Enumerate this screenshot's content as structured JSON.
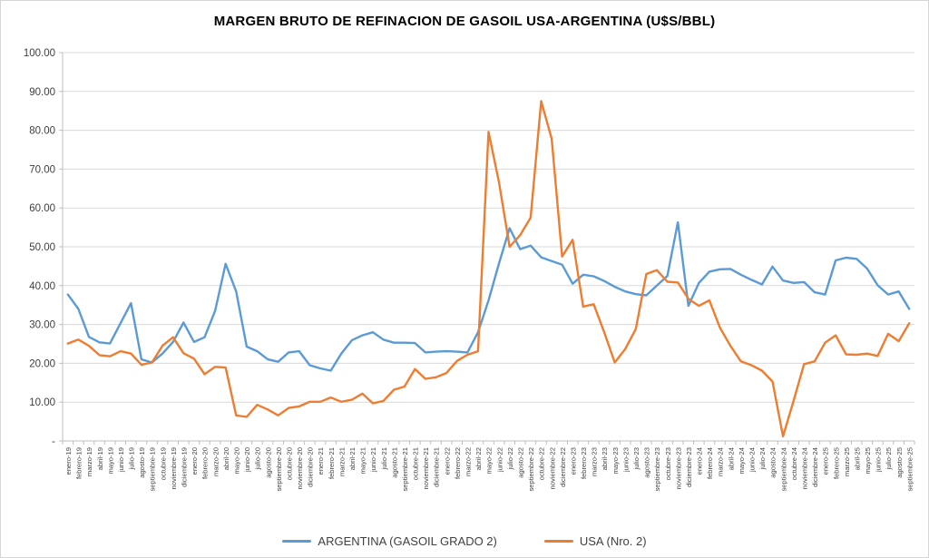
{
  "title": "MARGEN BRUTO DE REFINACION DE GASOIL USA-ARGENTINA (U$S/BBL)",
  "colors": {
    "argentina": "#5B9BD5",
    "usa": "#ED7D31",
    "grid": "#D9D9D9",
    "axis": "#BFBFBF",
    "tick_text": "#404040",
    "title_text": "#000000"
  },
  "y_axis": {
    "tick_labels": [
      "100.00",
      "90.00",
      "80.00",
      "70.00",
      "60.00",
      "50.00",
      "40.00",
      "30.00",
      "20.00",
      "10.00",
      "-"
    ],
    "tick_values": [
      100,
      90,
      80,
      70,
      60,
      50,
      40,
      30,
      20,
      10,
      0
    ]
  },
  "chart_data": {
    "type": "line",
    "title": "MARGEN BRUTO DE REFINACION DE GASOIL USA-ARGENTINA (U$S/BBL)",
    "xlabel": "",
    "ylabel": "",
    "ylim": [
      0,
      100
    ],
    "grid": "horizontal",
    "legend_position": "bottom",
    "categories": [
      "enero-19",
      "febrero-19",
      "marzo-19",
      "abril-19",
      "mayo-19",
      "junio-19",
      "julio-19",
      "agosto-19",
      "septiembre-19",
      "octubre-19",
      "noviembre-19",
      "diciembre-19",
      "enero-20",
      "febrero-20",
      "marzo-20",
      "abril-20",
      "mayo-20",
      "junio-20",
      "julio-20",
      "agosto-20",
      "septiembre-20",
      "octubre-20",
      "noviembre-20",
      "diciembre-20",
      "enero-21",
      "febrero-21",
      "marzo-21",
      "abril-21",
      "mayo-21",
      "junio-21",
      "julio-21",
      "agosto-21",
      "septiembre-21",
      "octubre-21",
      "noviembre-21",
      "diciembre-21",
      "enero-22",
      "febrero-22",
      "marzo-22",
      "abril-22",
      "mayo-22",
      "junio-22",
      "julio-22",
      "agosto-22",
      "septiembre-22",
      "octubre-22",
      "noviembre-22",
      "diciembre-22",
      "enero-23",
      "febrero-23",
      "marzo-23",
      "abril-23",
      "mayo-23",
      "junio-23",
      "julio-23",
      "agosto-23",
      "septiembre-23",
      "octubre-23",
      "noviembre-23",
      "diciembre-23",
      "enero-24",
      "febrero-24",
      "marzo-24",
      "abril-24",
      "mayo-24",
      "junio-24",
      "julio-24",
      "agosto-24",
      "septiembre-24",
      "octubre-24",
      "noviembre-24",
      "diciembre-24",
      "enero-25",
      "febrero-25",
      "marzo-25",
      "abril-25",
      "mayo-25",
      "junio-25",
      "julio-25",
      "agosto-25",
      "septiembre-25"
    ],
    "series": [
      {
        "name": "ARGENTINA (GASOIL GRADO 2)",
        "color_key": "argentina",
        "values": [
          37.7,
          34.0,
          26.8,
          25.4,
          25.1,
          30.3,
          35.5,
          21.0,
          20.2,
          22.5,
          25.5,
          30.5,
          25.5,
          26.7,
          33.5,
          45.6,
          38.5,
          24.3,
          23.1,
          21.0,
          20.4,
          22.8,
          23.1,
          19.5,
          18.7,
          18.1,
          22.5,
          25.9,
          27.2,
          28.0,
          26.1,
          25.3,
          25.3,
          25.2,
          22.8,
          23.0,
          23.1,
          23.0,
          22.8,
          28.0,
          36.2,
          45.8,
          54.8,
          49.4,
          50.3,
          47.3,
          46.3,
          45.4,
          40.5,
          42.8,
          42.4,
          41.2,
          39.7,
          38.5,
          37.8,
          37.5,
          40.0,
          42.5,
          56.3,
          34.8,
          40.7,
          43.6,
          44.2,
          44.3,
          42.8,
          41.5,
          40.3,
          44.9,
          41.3,
          40.7,
          40.9,
          38.3,
          37.7,
          46.5,
          47.2,
          46.9,
          44.4,
          40.1,
          37.7,
          38.5,
          34.0
        ]
      },
      {
        "name": "USA (Nro. 2)",
        "color_key": "usa",
        "values": [
          25.1,
          26.1,
          24.5,
          22.1,
          21.8,
          23.1,
          22.5,
          19.6,
          20.2,
          24.5,
          26.7,
          22.6,
          21.2,
          17.2,
          19.1,
          18.9,
          6.6,
          6.2,
          9.3,
          8.1,
          6.6,
          8.5,
          8.9,
          10.1,
          10.1,
          11.2,
          10.1,
          10.6,
          12.2,
          9.7,
          10.3,
          13.2,
          14.0,
          18.5,
          16.0,
          16.4,
          17.5,
          20.6,
          22.2,
          23.1,
          79.6,
          66.5,
          50.0,
          53.0,
          57.5,
          87.5,
          77.8,
          47.5,
          51.8,
          34.6,
          35.2,
          28.0,
          20.2,
          23.7,
          28.8,
          43.0,
          44.0,
          41.0,
          40.8,
          36.6,
          34.8,
          36.2,
          29.2,
          24.5,
          20.5,
          19.5,
          18.1,
          15.3,
          1.2,
          10.3,
          19.8,
          20.5,
          25.3,
          27.2,
          22.3,
          22.2,
          22.5,
          21.9,
          27.6,
          25.7,
          30.3
        ]
      }
    ]
  }
}
